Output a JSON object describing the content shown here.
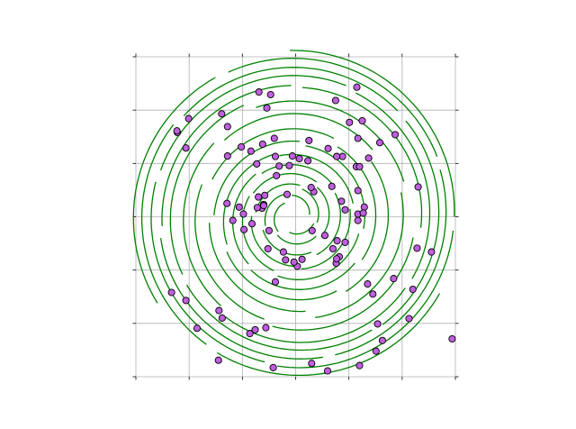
{
  "chart_data": {
    "type": "scatter",
    "title": "",
    "xlabel": "",
    "ylabel": "",
    "xlim": [
      -3,
      3
    ],
    "ylim": [
      -3,
      3
    ],
    "grid": true,
    "tick_labels_visible": false,
    "x_ticks": [
      -3,
      -2,
      -1,
      0,
      1,
      2,
      3
    ],
    "y_ticks": [
      -3,
      -2,
      -1,
      0,
      1,
      2,
      3
    ],
    "colors": {
      "arcs": "#008000",
      "points": "#bf5fdf",
      "point_edge": "#000000",
      "grid": "#b0b0b0"
    },
    "points": [
      [
        0.34,
        0.47
      ],
      [
        -0.12,
        0.96
      ],
      [
        -0.06,
        1.14
      ],
      [
        -0.73,
        0.99
      ],
      [
        -1.06,
        0.18
      ],
      [
        -0.97,
        -0.24
      ],
      [
        -0.82,
        -0.13
      ],
      [
        -0.38,
        1.13
      ],
      [
        -0.7,
        0.37
      ],
      [
        -0.6,
        0.23
      ],
      [
        -0.36,
        0.77
      ],
      [
        -0.63,
        0.16
      ],
      [
        -0.4,
        1.47
      ],
      [
        -0.31,
        0.95
      ],
      [
        -0.62,
        1.36
      ],
      [
        0.07,
        1.09
      ],
      [
        1.14,
        0.94
      ],
      [
        1.2,
        0.94
      ],
      [
        0.68,
        0.57
      ],
      [
        1.37,
        1.1
      ],
      [
        1.29,
        0.18
      ],
      [
        1.17,
        0.49
      ],
      [
        1.17,
        0.05
      ],
      [
        0.93,
        0.13
      ],
      [
        1.27,
        0.07
      ],
      [
        0.88,
        1.13
      ],
      [
        1.58,
        1.39
      ],
      [
        1.87,
        1.54
      ],
      [
        -1.39,
        1.93
      ],
      [
        -1.28,
        1.69
      ],
      [
        -0.69,
        2.34
      ],
      [
        -0.47,
        2.29
      ],
      [
        -0.54,
        2.04
      ],
      [
        -2.22,
        1.58
      ],
      [
        -2.06,
        1.29
      ],
      [
        -2.01,
        1.84
      ],
      [
        -2.23,
        1.61
      ],
      [
        -1.02,
        1.31
      ],
      [
        0.25,
        1.43
      ],
      [
        0.61,
        1.28
      ],
      [
        0.77,
        1.13
      ],
      [
        0.23,
        1.05
      ],
      [
        0.86,
        0.29
      ],
      [
        0.29,
        0.55
      ],
      [
        1.17,
        -0.07
      ],
      [
        -0.16,
        0.42
      ],
      [
        -1.28,
        1.14
      ],
      [
        -0.84,
        1.23
      ],
      [
        0.93,
        -0.48
      ],
      [
        0.82,
        -0.75
      ],
      [
        0.78,
        -0.45
      ],
      [
        0.55,
        -0.35
      ],
      [
        0.31,
        -0.26
      ],
      [
        -0.6,
        0.21
      ],
      [
        -0.5,
        -0.26
      ],
      [
        -0.72,
        0.17
      ],
      [
        -1.29,
        0.25
      ],
      [
        -1.18,
        -0.07
      ],
      [
        -0.98,
        0.05
      ],
      [
        -0.58,
        0.4
      ],
      [
        0.7,
        -0.6
      ],
      [
        0.76,
        -0.87
      ],
      [
        0.77,
        -0.79
      ],
      [
        0.12,
        -0.8
      ],
      [
        0.03,
        -0.93
      ],
      [
        -0.38,
        -1.22
      ],
      [
        -0.52,
        -0.6
      ],
      [
        -0.23,
        -0.66
      ],
      [
        -0.19,
        -0.81
      ],
      [
        -0.03,
        -0.85
      ],
      [
        1.17,
        1.47
      ],
      [
        0.75,
        2.18
      ],
      [
        1.01,
        1.77
      ],
      [
        1.15,
        2.43
      ],
      [
        1.25,
        1.8
      ],
      [
        2.55,
        -0.66
      ],
      [
        2.3,
        0.56
      ],
      [
        2.28,
        -0.59
      ],
      [
        2.2,
        -1.36
      ],
      [
        2.13,
        -1.91
      ],
      [
        1.54,
        -2.01
      ],
      [
        1.63,
        -2.32
      ],
      [
        1.51,
        -2.52
      ],
      [
        1.2,
        -2.79
      ],
      [
        0.6,
        -2.89
      ],
      [
        0.3,
        -2.75
      ],
      [
        -0.42,
        -2.83
      ],
      [
        -0.76,
        -2.12
      ],
      [
        -1.45,
        -2.69
      ],
      [
        -1.85,
        -2.09
      ],
      [
        -0.86,
        -2.19
      ],
      [
        -0.56,
        -2.08
      ],
      [
        1.35,
        -1.26
      ],
      [
        -1.44,
        -1.76
      ],
      [
        -2.06,
        -1.57
      ],
      [
        -2.33,
        -1.42
      ],
      [
        -1.38,
        -1.9
      ],
      [
        1.84,
        -1.16
      ],
      [
        1.45,
        -1.45
      ],
      [
        2.94,
        -2.29
      ]
    ],
    "arcs": [
      {
        "r": 2.98,
        "start": 0,
        "end": 360
      },
      {
        "r": 2.86,
        "start": 0,
        "end": 360
      },
      {
        "r": 2.72,
        "start": 0,
        "end": 360
      },
      {
        "r": 2.6,
        "start": 0,
        "end": 360
      },
      {
        "r": 2.45,
        "start": 0,
        "end": 360
      },
      {
        "r": 2.32,
        "start": 0,
        "end": 360
      },
      {
        "r": 2.1,
        "start": 0,
        "end": 360
      },
      {
        "r": 1.9,
        "start": 0,
        "end": 360
      },
      {
        "r": 1.65,
        "start": 0,
        "end": 360
      },
      {
        "r": 1.45,
        "start": 0,
        "end": 360
      },
      {
        "r": 1.28,
        "start": 0,
        "end": 360
      },
      {
        "r": 1.12,
        "start": 0,
        "end": 360
      },
      {
        "r": 0.95,
        "start": 0,
        "end": 360
      },
      {
        "r": 0.8,
        "start": 0,
        "end": 360
      },
      {
        "r": 0.62,
        "start": 0,
        "end": 360
      },
      {
        "r": 0.45,
        "start": 0,
        "end": 360
      },
      {
        "r": 0.3,
        "start": 0,
        "end": 360
      }
    ]
  }
}
